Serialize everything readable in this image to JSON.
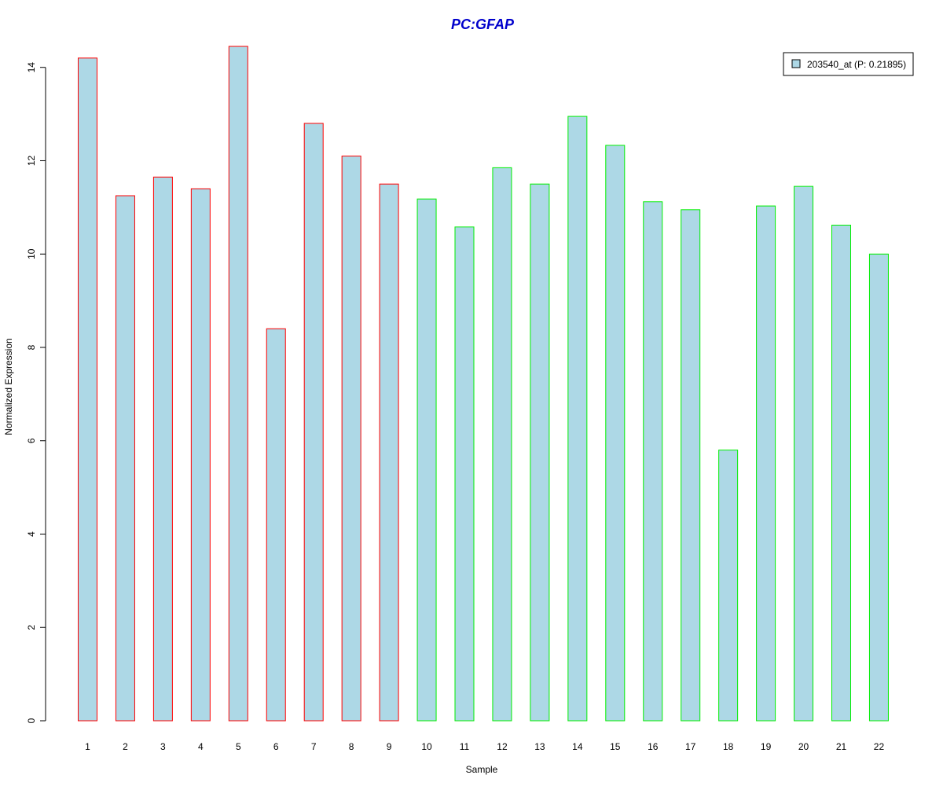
{
  "chart_data": {
    "type": "bar",
    "title": "PC:GFAP",
    "xlabel": "Sample",
    "ylabel": "Normalized Expression",
    "categories": [
      "1",
      "2",
      "3",
      "4",
      "5",
      "6",
      "7",
      "8",
      "9",
      "10",
      "11",
      "12",
      "13",
      "14",
      "15",
      "16",
      "17",
      "18",
      "19",
      "20",
      "21",
      "22"
    ],
    "series": [
      {
        "name": "203540_at (P: 0.21895)",
        "values": [
          14.2,
          11.25,
          11.65,
          11.4,
          14.45,
          8.4,
          12.8,
          12.1,
          11.5,
          11.18,
          10.58,
          11.85,
          11.5,
          12.95,
          12.33,
          11.12,
          10.95,
          5.8,
          11.03,
          11.45,
          10.62,
          10.0
        ]
      }
    ],
    "groups": [
      {
        "border_color": "#ff0000",
        "samples": [
          1,
          9
        ]
      },
      {
        "border_color": "#00ee00",
        "samples": [
          10,
          22
        ]
      }
    ],
    "bar_fill": "#add8e6",
    "title_color": "#0000cc",
    "y_ticks": [
      0,
      2,
      4,
      6,
      8,
      10,
      12,
      14
    ],
    "ylim": [
      0,
      14.45
    ],
    "grid": false,
    "legend_position": "top-right"
  }
}
